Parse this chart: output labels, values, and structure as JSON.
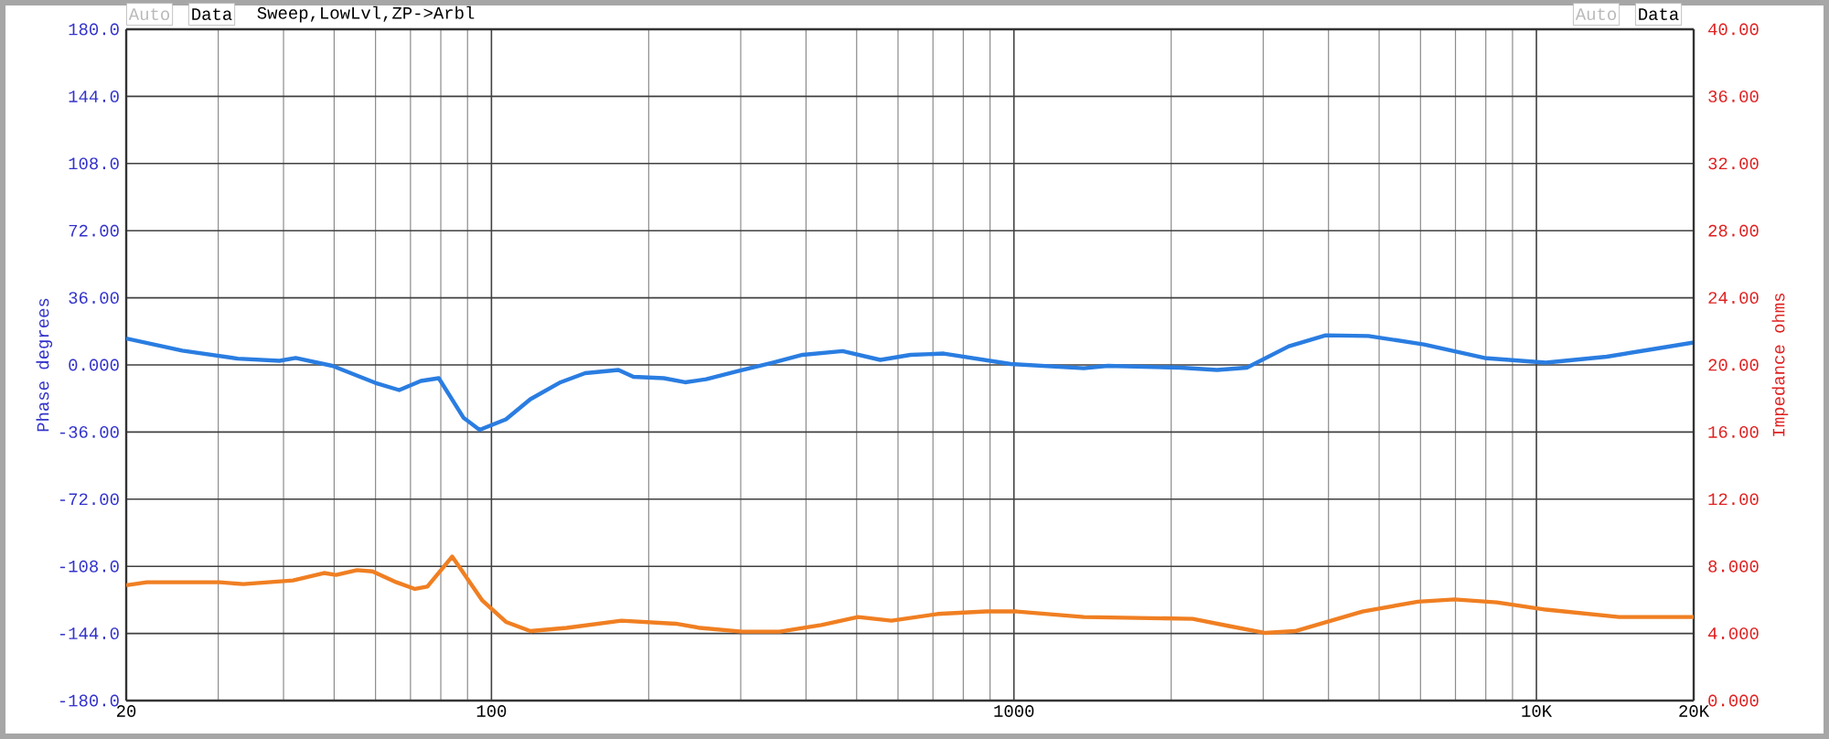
{
  "chart_data": {
    "type": "line",
    "title": "Sweep,LowLvl,ZP->Arbl",
    "ylabel": "Phase degrees",
    "y2label": "Impedance ohms",
    "annotations": [
      "Auto",
      "Data",
      "Auto",
      "Data"
    ],
    "log": "x",
    "grid": true,
    "xlim": [
      20,
      20000
    ],
    "xticks": [
      20,
      100,
      1000,
      {
        "value": 10000,
        "label": "10K"
      },
      {
        "value": 20000,
        "label": "20K"
      }
    ],
    "ylim": [
      -180,
      180
    ],
    "yticks": [
      {
        "value": -180,
        "label": "-180.0"
      },
      {
        "value": -144,
        "label": "-144.0"
      },
      {
        "value": -108,
        "label": "-108.0"
      },
      {
        "value": -72,
        "label": "-72.00"
      },
      {
        "value": -36,
        "label": "-36.00"
      },
      {
        "value": 0,
        "label": "0.000"
      },
      {
        "value": 36,
        "label": "36.00"
      },
      {
        "value": 72,
        "label": "72.00"
      },
      {
        "value": 108,
        "label": "108.0"
      },
      {
        "value": 144,
        "label": "144.0"
      },
      {
        "value": 180,
        "label": "180.0"
      }
    ],
    "y2lim": [
      0,
      40
    ],
    "y2ticks": [
      {
        "value": 0,
        "label": "0.000"
      },
      {
        "value": 4,
        "label": "4.000"
      },
      {
        "value": 8,
        "label": "8.000"
      },
      {
        "value": 12,
        "label": "12.00"
      },
      {
        "value": 16,
        "label": "16.00"
      },
      {
        "value": 20,
        "label": "20.00"
      },
      {
        "value": 24,
        "label": "24.00"
      },
      {
        "value": 28,
        "label": "28.00"
      },
      {
        "value": 32,
        "label": "32.00"
      },
      {
        "value": 36,
        "label": "36.00"
      },
      {
        "value": 40,
        "label": "40.00"
      }
    ],
    "series": [
      {
        "color": "#2a7de1",
        "x": [
          20,
          25.6,
          32.7,
          39.3,
          42.2,
          49.6,
          59.9,
          66.6,
          73.3,
          79.3,
          88.4,
          94.9,
          106.6,
          118.7,
          135.6,
          151.1,
          175,
          187,
          213.7,
          234.7,
          257.6,
          298,
          345,
          394,
          470,
          555,
          634,
          734,
          986,
          1361,
          1512,
          2083,
          2447,
          2791,
          3358,
          3952,
          4770,
          6093,
          7964,
          10425,
          13637,
          16826,
          20000
        ],
        "values": [
          14.2,
          7.7,
          3.4,
          2.2,
          3.7,
          -0.5,
          -9.6,
          -13.5,
          -8.6,
          -7.1,
          -28.3,
          -34.8,
          -29.2,
          -18.4,
          -9.3,
          -4.4,
          -2.7,
          -6.4,
          -7.1,
          -9.3,
          -7.7,
          -3.1,
          1.2,
          5.4,
          7.4,
          2.7,
          5.4,
          6.1,
          0.5,
          -1.8,
          -0.5,
          -1.5,
          -2.7,
          -1.5,
          10,
          15.9,
          15.5,
          11,
          3.7,
          1.2,
          4.4,
          8.6,
          12
        ]
      },
      {
        "color": "#f07f22",
        "axis": "y2",
        "x": [
          20,
          21.9,
          30.2,
          33.5,
          41.7,
          47.8,
          50.4,
          55.3,
          59.2,
          65.8,
          71.4,
          75.4,
          84.1,
          96.1,
          106.6,
          118.7,
          139.3,
          177.3,
          225.3,
          250.6,
          302,
          356,
          428,
          503,
          583,
          714,
          886,
          1013,
          1361,
          2198,
          2580,
          3031,
          3452,
          4646,
          5931,
          6969,
          8400,
          10425,
          14398,
          20000
        ],
        "values": [
          6.87,
          7.05,
          7.05,
          6.94,
          7.16,
          7.6,
          7.49,
          7.77,
          7.7,
          7.05,
          6.65,
          6.79,
          8.58,
          5.96,
          4.69,
          4.14,
          4.33,
          4.76,
          4.58,
          4.33,
          4.11,
          4.11,
          4.5,
          4.98,
          4.76,
          5.16,
          5.31,
          5.31,
          4.98,
          4.87,
          4.44,
          4.03,
          4.14,
          5.31,
          5.89,
          6.03,
          5.85,
          5.42,
          4.98,
          4.98
        ]
      }
    ]
  }
}
